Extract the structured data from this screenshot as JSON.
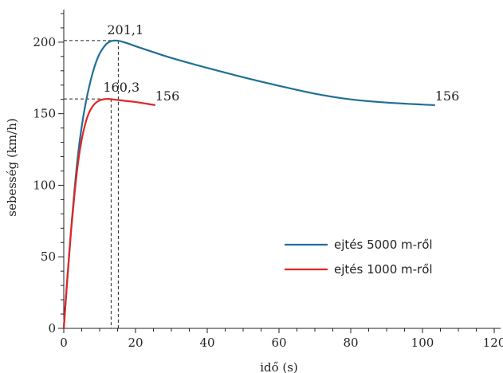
{
  "chart_data": {
    "type": "line",
    "title": "",
    "xlabel": "idő (s)",
    "ylabel": "sebesség (km/h)",
    "xlim": [
      0,
      120
    ],
    "ylim": [
      0,
      225
    ],
    "x_ticks": [
      0,
      20,
      40,
      60,
      80,
      100,
      120
    ],
    "y_ticks": [
      0,
      50,
      100,
      150,
      200
    ],
    "grid": false,
    "legend_position": "center-right",
    "series": [
      {
        "name": "ejtés 5000 m-ről",
        "color": "#1f6f94",
        "x": [
          0,
          1,
          2,
          3,
          4,
          5,
          6,
          7,
          8,
          9,
          10,
          11,
          12,
          13,
          14,
          15,
          16,
          18,
          20,
          25,
          30,
          40,
          50,
          60,
          70,
          80,
          90,
          100,
          103.5
        ],
        "y": [
          0,
          35,
          68,
          97,
          122,
          141,
          156,
          168,
          178,
          186,
          192,
          196,
          199,
          200.6,
          201.1,
          201,
          200.5,
          199,
          197.2,
          193,
          189,
          182,
          175.5,
          169.5,
          164,
          160,
          157.8,
          156.4,
          156
        ]
      },
      {
        "name": "ejtés 1000 m-ről",
        "color": "#e02626",
        "x": [
          0,
          1,
          2,
          3,
          4,
          5,
          6,
          7,
          8,
          9,
          10,
          11,
          12,
          13,
          15,
          17,
          20,
          23,
          25.5
        ],
        "y": [
          0,
          35,
          67,
          94,
          116,
          132,
          143,
          150.5,
          155,
          157.8,
          159.3,
          160,
          160.3,
          160.2,
          159.6,
          159,
          158.2,
          157,
          156
        ]
      }
    ],
    "annotations": [
      {
        "text": "201,1",
        "x": 14.5,
        "y": 201.1
      },
      {
        "text": "160,3",
        "x": 12.5,
        "y": 160.3
      },
      {
        "text": "156",
        "x": 25.5,
        "y": 156
      },
      {
        "text": "156",
        "x": 103.5,
        "y": 156
      }
    ],
    "reference_lines": [
      {
        "x": 15.2,
        "y": 201.1
      },
      {
        "x": 13.2,
        "y": 160.3
      }
    ]
  }
}
